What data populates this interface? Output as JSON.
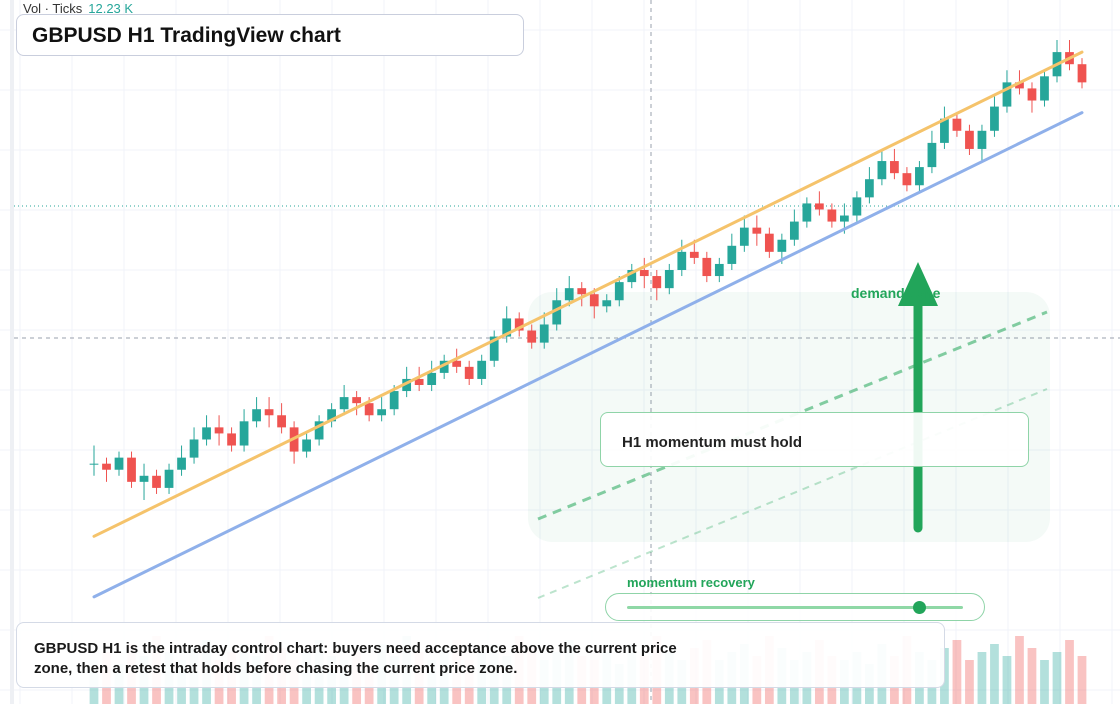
{
  "volume": {
    "label": "Vol · Ticks",
    "value": "12.23 K"
  },
  "title": "GBPUSD H1 TradingView chart",
  "annotations": {
    "callout": "H1 momentum must hold",
    "demand_zone": "demand zone",
    "momentum": "momentum recovery",
    "momentum_level": 0.87,
    "arrow_direction": "up"
  },
  "caption": "GBPUSD H1 is the intraday control chart: buyers need acceptance above the current price zone, then a retest that holds before chasing the current price zone.",
  "colors": {
    "up": "#26a69a",
    "down": "#ef5350",
    "trend_orange": "#f5c36b",
    "trend_blue": "#8fb0ea",
    "accent_green": "#22a55a"
  },
  "chart_data": {
    "type": "candlestick",
    "title": "GBPUSD H1 TradingView chart",
    "timeframe": "H1",
    "price_axis_labels": "not shown",
    "grid": true,
    "candles_ohlc": [
      [
        372,
        372,
        375,
        370
      ],
      [
        372,
        371,
        373,
        369
      ],
      [
        371,
        373,
        374,
        370
      ],
      [
        373,
        369,
        374,
        368
      ],
      [
        369,
        370,
        372,
        366
      ],
      [
        370,
        368,
        371,
        367
      ],
      [
        368,
        371,
        372,
        367
      ],
      [
        371,
        373,
        375,
        370
      ],
      [
        373,
        376,
        378,
        372
      ],
      [
        376,
        378,
        380,
        375
      ],
      [
        378,
        377,
        380,
        375
      ],
      [
        377,
        375,
        378,
        374
      ],
      [
        375,
        379,
        381,
        374
      ],
      [
        379,
        381,
        383,
        378
      ],
      [
        381,
        380,
        383,
        378
      ],
      [
        380,
        378,
        382,
        377
      ],
      [
        378,
        374,
        379,
        372
      ],
      [
        374,
        376,
        377,
        373
      ],
      [
        376,
        379,
        380,
        375
      ],
      [
        379,
        381,
        382,
        378
      ],
      [
        381,
        383,
        385,
        380
      ],
      [
        383,
        382,
        384,
        380
      ],
      [
        382,
        380,
        383,
        379
      ],
      [
        380,
        381,
        383,
        379
      ],
      [
        381,
        384,
        385,
        380
      ],
      [
        384,
        386,
        388,
        383
      ],
      [
        386,
        385,
        388,
        384
      ],
      [
        385,
        387,
        389,
        384
      ],
      [
        387,
        389,
        390,
        386
      ],
      [
        389,
        388,
        391,
        387
      ],
      [
        388,
        386,
        389,
        385
      ],
      [
        386,
        389,
        390,
        385
      ],
      [
        389,
        393,
        394,
        388
      ],
      [
        393,
        396,
        398,
        392
      ],
      [
        396,
        394,
        397,
        393
      ],
      [
        394,
        392,
        395,
        391
      ],
      [
        392,
        395,
        397,
        391
      ],
      [
        395,
        399,
        401,
        394
      ],
      [
        399,
        401,
        403,
        398
      ],
      [
        401,
        400,
        402,
        398
      ],
      [
        400,
        398,
        401,
        396
      ],
      [
        398,
        399,
        400,
        397
      ],
      [
        399,
        402,
        403,
        398
      ],
      [
        402,
        404,
        405,
        401
      ],
      [
        404,
        403,
        406,
        401
      ],
      [
        403,
        401,
        404,
        399
      ],
      [
        401,
        404,
        405,
        400
      ],
      [
        404,
        407,
        409,
        403
      ],
      [
        407,
        406,
        409,
        405
      ],
      [
        406,
        403,
        407,
        402
      ],
      [
        403,
        405,
        406,
        402
      ],
      [
        405,
        408,
        410,
        404
      ],
      [
        408,
        411,
        413,
        407
      ],
      [
        411,
        410,
        413,
        408
      ],
      [
        410,
        407,
        411,
        406
      ],
      [
        407,
        409,
        410,
        405
      ],
      [
        409,
        412,
        414,
        408
      ],
      [
        412,
        415,
        416,
        411
      ],
      [
        415,
        414,
        417,
        413
      ],
      [
        414,
        412,
        415,
        411
      ],
      [
        412,
        413,
        415,
        410
      ],
      [
        413,
        416,
        417,
        412
      ],
      [
        416,
        419,
        421,
        415
      ],
      [
        419,
        422,
        424,
        418
      ],
      [
        422,
        420,
        424,
        419
      ],
      [
        420,
        418,
        421,
        417
      ],
      [
        418,
        421,
        422,
        417
      ],
      [
        421,
        425,
        427,
        420
      ],
      [
        425,
        429,
        431,
        424
      ],
      [
        429,
        427,
        430,
        426
      ],
      [
        427,
        424,
        428,
        423
      ],
      [
        424,
        427,
        428,
        422
      ],
      [
        427,
        431,
        433,
        426
      ],
      [
        431,
        435,
        437,
        430
      ],
      [
        435,
        434,
        437,
        433
      ],
      [
        434,
        432,
        435,
        430
      ],
      [
        432,
        436,
        437,
        431
      ],
      [
        436,
        440,
        442,
        435
      ],
      [
        440,
        438,
        442,
        437
      ],
      [
        438,
        435,
        439,
        434
      ]
    ],
    "volume_bars_relative": [
      0.3,
      0.4,
      0.25,
      0.5,
      0.35,
      0.6,
      0.4,
      0.3,
      0.45,
      0.55,
      0.3,
      0.4,
      0.5,
      0.35,
      0.6,
      0.45,
      0.3,
      0.4,
      0.55,
      0.35
    ],
    "trendlines": [
      {
        "color": "#f5c36b",
        "from": [
          0,
          360
        ],
        "to": [
          79,
          440
        ]
      },
      {
        "color": "#8fb0ea",
        "from": [
          0,
          350
        ],
        "to": [
          79,
          430
        ]
      }
    ],
    "annotation_arrow": "up",
    "shaded_zone": "demand zone"
  }
}
